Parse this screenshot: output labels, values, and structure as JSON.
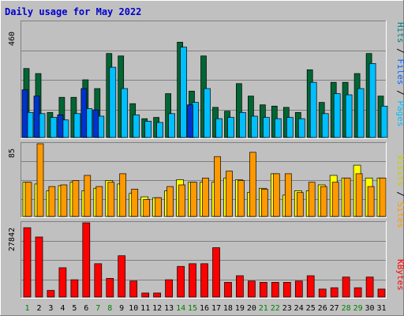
{
  "chart_data": {
    "type": "bar",
    "title": "Daily usage for May 2022",
    "days": [
      "1",
      "2",
      "3",
      "4",
      "5",
      "6",
      "7",
      "8",
      "9",
      "10",
      "11",
      "12",
      "13",
      "14",
      "15",
      "16",
      "17",
      "18",
      "19",
      "20",
      "21",
      "22",
      "23",
      "24",
      "25",
      "26",
      "27",
      "28",
      "29",
      "30",
      "31"
    ],
    "weekend_days": [
      1,
      7,
      8,
      14,
      15,
      21,
      22,
      28,
      29
    ],
    "top_panel": {
      "max_label": "460",
      "ymax": 460,
      "axis_labels": {
        "pages": "Pages",
        "files": "Files",
        "hits": "Hits",
        "sep": " / "
      },
      "series": [
        {
          "name": "Hits",
          "color": "#006633",
          "values": [
            275,
            255,
            100,
            160,
            160,
            230,
            195,
            335,
            325,
            135,
            75,
            80,
            175,
            380,
            185,
            325,
            120,
            105,
            215,
            165,
            130,
            125,
            120,
            100,
            270,
            140,
            220,
            220,
            255,
            335,
            165
          ]
        },
        {
          "name": "Files",
          "color": "#00bfff",
          "values": [
            100,
            95,
            80,
            70,
            95,
            115,
            85,
            280,
            195,
            90,
            65,
            60,
            95,
            360,
            140,
            195,
            75,
            80,
            100,
            85,
            80,
            75,
            80,
            75,
            220,
            95,
            175,
            170,
            195,
            295,
            125
          ]
        },
        {
          "name": "Pages",
          "color": "#0033cc",
          "values": [
            190,
            165,
            0,
            90,
            0,
            195,
            110,
            0,
            0,
            0,
            0,
            0,
            0,
            0,
            130,
            0,
            0,
            0,
            0,
            0,
            0,
            0,
            0,
            0,
            0,
            0,
            0,
            0,
            0,
            0,
            0
          ]
        }
      ]
    },
    "middle_panel": {
      "max_label": "85",
      "ymax": 85,
      "axis_labels": {
        "sites": "Sites",
        "visits": "Visits",
        "sep": " / "
      },
      "series": [
        {
          "name": "Visits",
          "color": "#ffff00",
          "values": [
            40,
            38,
            30,
            36,
            40,
            30,
            33,
            42,
            38,
            27,
            23,
            22,
            30,
            43,
            40,
            40,
            40,
            45,
            43,
            28,
            33,
            50,
            25,
            30,
            30,
            37,
            48,
            45,
            60,
            45,
            45
          ]
        },
        {
          "name": "Sites",
          "color": "#ff9900",
          "values": [
            40,
            85,
            35,
            37,
            42,
            48,
            35,
            40,
            50,
            32,
            20,
            22,
            35,
            37,
            40,
            45,
            70,
            53,
            42,
            75,
            32,
            50,
            50,
            28,
            40,
            35,
            40,
            45,
            50,
            35,
            45
          ]
        }
      ]
    },
    "bottom_panel": {
      "max_label": "27842",
      "ymax": 27842,
      "axis_labels": {
        "kbytes": "KBytes"
      },
      "series": [
        {
          "name": "KBytes",
          "color": "#ff0000",
          "values": [
            26000,
            22500,
            2500,
            11000,
            6500,
            27842,
            12500,
            7000,
            15500,
            6000,
            1500,
            1500,
            6500,
            11500,
            12500,
            12500,
            18500,
            5500,
            8000,
            6000,
            5500,
            5500,
            5500,
            6000,
            8000,
            3000,
            3500,
            7500,
            3500,
            7500,
            3000
          ]
        }
      ]
    }
  }
}
